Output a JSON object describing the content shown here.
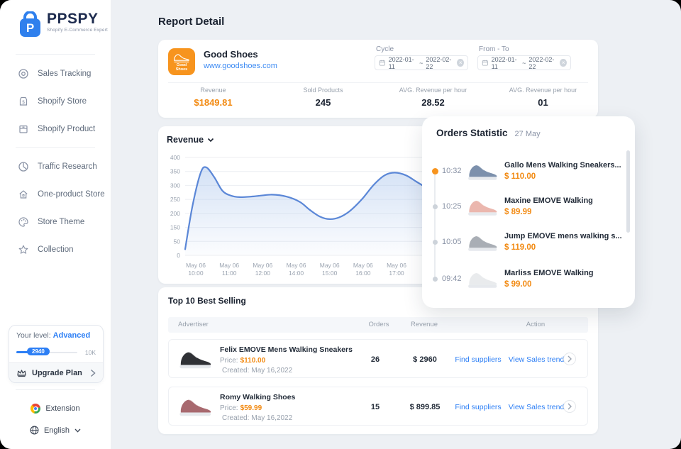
{
  "app": {
    "accent_orange": "#F28A12",
    "accent_blue": "#2D7FF5"
  },
  "sidebar": {
    "logo": {
      "title": "PPSPY",
      "subtitle": "Shopify E-Commerce Expert"
    },
    "nav_primary": [
      {
        "label": "Sales Tracking",
        "icon": "target-icon"
      },
      {
        "label": "Shopify Store",
        "icon": "store-bag-icon"
      },
      {
        "label": "Shopify Product",
        "icon": "product-box-icon"
      }
    ],
    "nav_secondary": [
      {
        "label": "Traffic Research",
        "icon": "pie-clock-icon"
      },
      {
        "label": "One-product Store",
        "icon": "home-icon"
      },
      {
        "label": "Store Theme",
        "icon": "palette-icon"
      },
      {
        "label": "Collection",
        "icon": "star-icon"
      }
    ],
    "level": {
      "label": "Your level:",
      "value": "Advanced",
      "progress": "2940",
      "max": "10K"
    },
    "upgrade_label": "Upgrade Plan",
    "extension_label": "Extension",
    "language_label": "English"
  },
  "header": {
    "title": "Report Detail"
  },
  "store_card": {
    "logo_line1": "Good",
    "logo_line2": "Shoes",
    "name": "Good Shoes",
    "url": "www.goodshoes.com",
    "cycle_label": "Cycle",
    "from_to_label": "From - To",
    "date_start": "2022-01-11",
    "date_sep": "~",
    "date_end": "2022-02-22",
    "stats": [
      {
        "label": "Revenue",
        "value": "$1849.81"
      },
      {
        "label": "Sold Products",
        "value": "245"
      },
      {
        "label": "AVG. Revenue per hour",
        "value": "28.52"
      },
      {
        "label": "AVG. Revenue per hour",
        "value": "01"
      }
    ]
  },
  "chart_data": {
    "type": "area",
    "title": "Revenue",
    "xlabel": "",
    "ylabel": "",
    "ylim": [
      0,
      400
    ],
    "grid": true,
    "legend": "none",
    "line_color": "#5B87D7",
    "fill_color": "#A9C4EC",
    "y_ticks": [
      "400",
      "350",
      "300",
      "250",
      "200",
      "150",
      "50",
      "0"
    ],
    "x_ticks": [
      {
        "d": "May 06",
        "t": "10:00"
      },
      {
        "d": "May 06",
        "t": "11:00"
      },
      {
        "d": "May 06",
        "t": "12:00"
      },
      {
        "d": "May 06",
        "t": "14:00"
      },
      {
        "d": "May 06",
        "t": "15:00"
      },
      {
        "d": "May 06",
        "t": "16:00"
      },
      {
        "d": "May 06",
        "t": "17:00"
      }
    ],
    "series": [
      {
        "name": "Revenue",
        "note": "points are [fraction-across-x-axis, revenue-value] estimated from pixels",
        "points": [
          [
            0.0,
            25
          ],
          [
            0.018,
            200
          ],
          [
            0.038,
            335
          ],
          [
            0.052,
            360
          ],
          [
            0.072,
            320
          ],
          [
            0.092,
            265
          ],
          [
            0.112,
            245
          ],
          [
            0.135,
            238
          ],
          [
            0.17,
            241
          ],
          [
            0.215,
            248
          ],
          [
            0.252,
            240
          ],
          [
            0.285,
            218
          ],
          [
            0.31,
            185
          ],
          [
            0.335,
            158
          ],
          [
            0.358,
            148
          ],
          [
            0.382,
            155
          ],
          [
            0.408,
            180
          ],
          [
            0.438,
            228
          ],
          [
            0.468,
            288
          ],
          [
            0.495,
            327
          ],
          [
            0.52,
            338
          ],
          [
            0.548,
            327
          ],
          [
            0.575,
            300
          ],
          [
            0.605,
            270
          ],
          [
            0.64,
            235
          ],
          [
            0.675,
            205
          ]
        ]
      }
    ]
  },
  "orders_panel": {
    "title": "Orders Statistic",
    "date": "27 May",
    "items": [
      {
        "time": "10:32",
        "name": "Gallo Mens Walking Sneakers...",
        "price": "$ 110.00",
        "dot_color": "#F7941E",
        "shoe_color": "#7C90AC"
      },
      {
        "time": "10:25",
        "name": "Maxine EMOVE Walking",
        "price": "$ 89.99",
        "dot_color": "#CDD3DA",
        "shoe_color": "#EBB7AE"
      },
      {
        "time": "10:05",
        "name": "Jump EMOVE mens walking s...",
        "price": "$ 119.00",
        "dot_color": "#CDD3DA",
        "shoe_color": "#A9AEB5"
      },
      {
        "time": "09:42",
        "name": "Marliss EMOVE Walking",
        "price": "$ 99.00",
        "dot_color": "#CDD3DA",
        "shoe_color": "#E9EBED"
      }
    ]
  },
  "top_selling": {
    "title": "Top 10 Best Selling",
    "columns": [
      "Advertiser",
      "Orders",
      "Revenue",
      "Action"
    ],
    "rows": [
      {
        "name": "Felix EMOVE Mens Walking Sneakers",
        "price_label": "Price:",
        "price": "$110.00",
        "created_label": "Created:",
        "created": "May 16,2022",
        "orders": "26",
        "revenue": "$ 2960",
        "find_label": "Find suppliers",
        "view_label": "View Sales trend",
        "shoe_color": "#2F3135"
      },
      {
        "name": "Romy Walking Shoes",
        "price_label": "Price:",
        "price": "$59.99",
        "created_label": "Created:",
        "created": "May 16,2022",
        "orders": "15",
        "revenue": "$ 899.85",
        "find_label": "Find suppliers",
        "view_label": "View Sales trend",
        "shoe_color": "#A8696F"
      }
    ]
  }
}
